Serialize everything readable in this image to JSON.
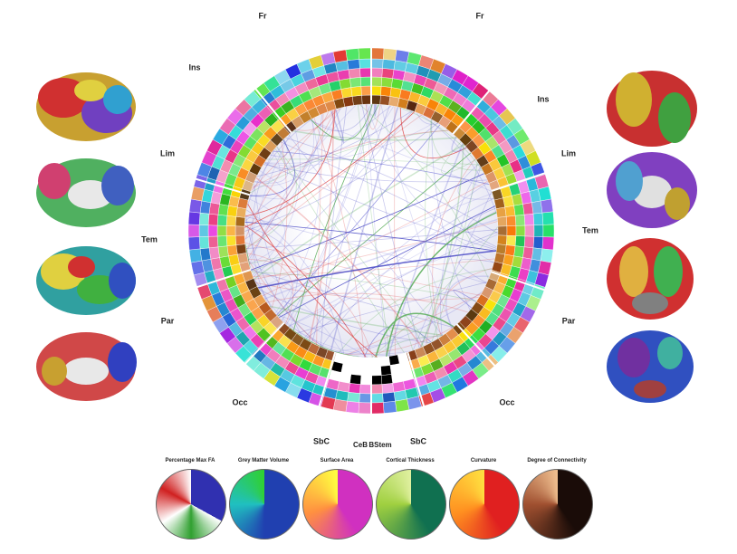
{
  "lobe_labels": {
    "left": [
      "Fr",
      "Ins",
      "Lim",
      "Tem",
      "Par",
      "Occ",
      "SbC"
    ],
    "right": [
      "Fr",
      "Ins",
      "Lim",
      "Tem",
      "Par",
      "Occ",
      "SbC"
    ],
    "center": [
      "CeB",
      "BStem"
    ]
  },
  "legends": [
    "Percentage Max FA",
    "Grey Matter Volume",
    "Surface Area",
    "Cortical Thickness",
    "Curvature",
    "Degree of Connectivity"
  ]
}
